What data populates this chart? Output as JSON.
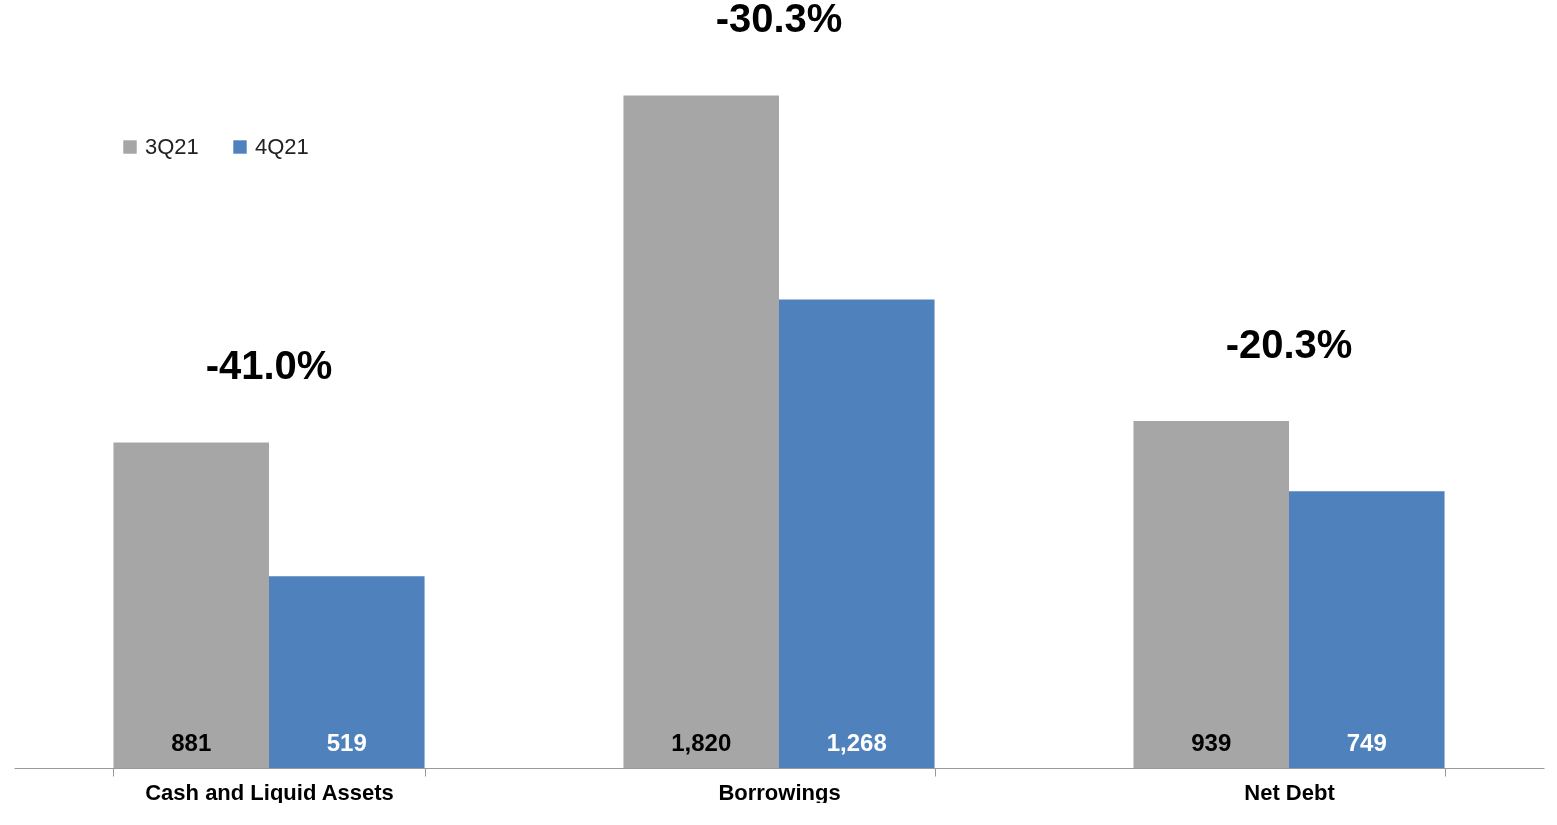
{
  "chart_data": {
    "type": "bar",
    "categories": [
      "Cash and Liquid Assets",
      "Borrowings",
      "Net Debt"
    ],
    "series": [
      {
        "name": "3Q21",
        "color": "#a6a6a6",
        "values": [
          881,
          1820,
          939
        ],
        "value_labels": [
          "881",
          "1,820",
          "939"
        ]
      },
      {
        "name": "4Q21",
        "color": "#4f81bd",
        "values": [
          519,
          1268,
          749
        ],
        "value_labels": [
          "519",
          "1,268",
          "749"
        ]
      }
    ],
    "annotations": [
      "-41.0%",
      "-30.3%",
      "-20.3%"
    ],
    "legend": "top left",
    "grid": false
  }
}
